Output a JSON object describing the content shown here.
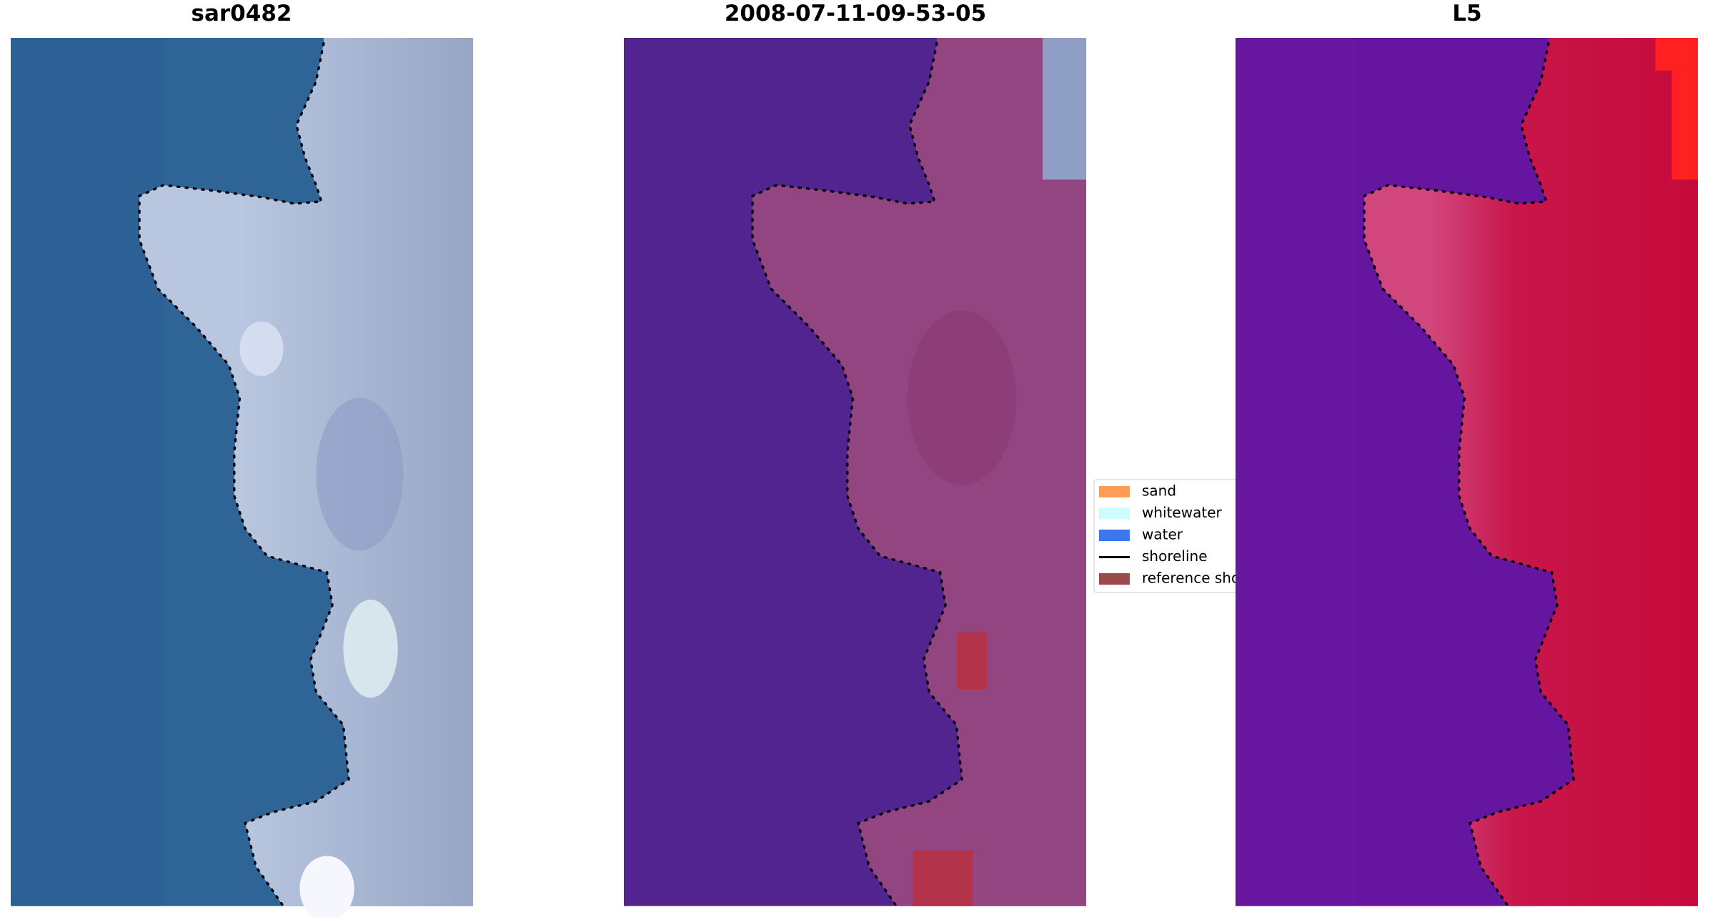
{
  "panels": [
    {
      "title": "sar0482"
    },
    {
      "title": "2008-07-11-09-53-05"
    },
    {
      "title": "L5"
    }
  ],
  "legend": {
    "items": [
      {
        "label": "sand",
        "color": "#ff8c3a",
        "kind": "patch"
      },
      {
        "label": "whitewater",
        "color": "#c6fbfb",
        "kind": "patch"
      },
      {
        "label": "water",
        "color": "#1760e8",
        "kind": "patch"
      },
      {
        "label": "shoreline",
        "color": "#000000",
        "kind": "line"
      },
      {
        "label": "reference sho",
        "color": "#8b2c2c",
        "kind": "patch"
      }
    ]
  }
}
